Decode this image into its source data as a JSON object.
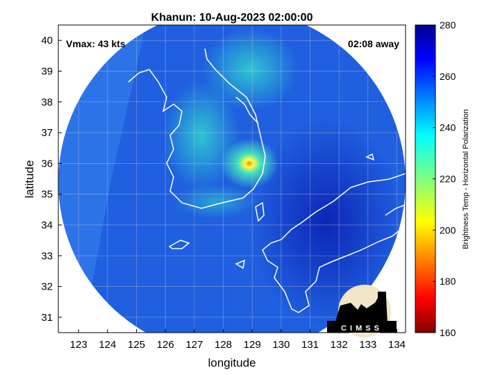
{
  "chart_data": {
    "type": "heatmap",
    "title": "Khanun: 10-Aug-2023 02:00:00",
    "xlabel": "longitude",
    "ylabel": "latitude",
    "xlim": [
      122.3,
      134.3
    ],
    "ylim": [
      30.5,
      40.5
    ],
    "xticks": [
      123,
      124,
      125,
      126,
      127,
      128,
      129,
      130,
      131,
      132,
      133,
      134
    ],
    "yticks": [
      31,
      32,
      33,
      34,
      35,
      36,
      37,
      38,
      39,
      40
    ],
    "grid": true,
    "storm_center": {
      "lon": 128.9,
      "lat": 36.0
    },
    "swath": {
      "center_lon": 128.3,
      "center_lat": 35.4,
      "radius_deg": 6.0
    },
    "colorbar": {
      "label": "Brightness Temp - Horizontal Polarization",
      "min": 160,
      "max": 280,
      "ticks": [
        160,
        180,
        200,
        220,
        240,
        260,
        280
      ]
    }
  },
  "annotations": {
    "vmax": "Vmax: 43 kts",
    "time_offset": "02:08 away"
  },
  "logo": {
    "text": "CIMSS"
  },
  "colors": {
    "background_field": "#1f5fe0",
    "outside_swath": "#ffffff",
    "coastline": "#ffffff",
    "grid": "#cccccc"
  }
}
